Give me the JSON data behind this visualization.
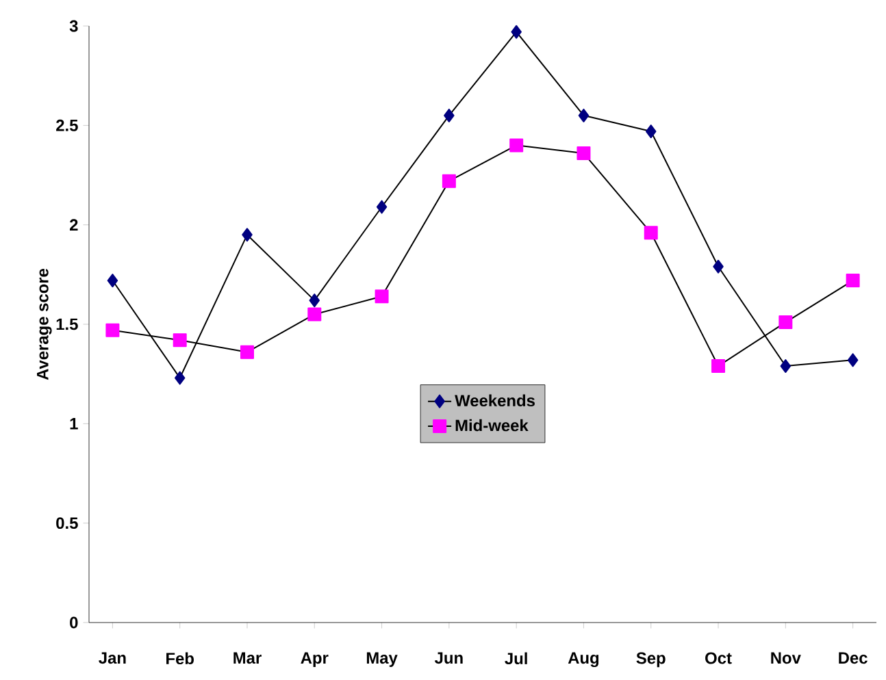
{
  "chart_data": {
    "type": "line",
    "ylabel": "Average score",
    "categories": [
      "Jan",
      "Feb",
      "Mar",
      "Apr",
      "May",
      "Jun",
      "Jul",
      "Aug",
      "Sep",
      "Oct",
      "Nov",
      "Dec"
    ],
    "series": [
      {
        "name": "Weekends",
        "color": "#000080",
        "marker": "diamond",
        "values": [
          1.72,
          1.23,
          1.95,
          1.62,
          2.09,
          2.55,
          2.97,
          2.55,
          2.47,
          1.79,
          1.29,
          1.32
        ]
      },
      {
        "name": "Mid-week",
        "color": "#ff00ff",
        "marker": "square",
        "values": [
          1.47,
          1.42,
          1.36,
          1.55,
          1.64,
          2.22,
          2.4,
          2.36,
          1.96,
          1.29,
          1.51,
          1.72
        ]
      }
    ],
    "ylim": [
      0,
      3
    ],
    "yticks": [
      0,
      0.5,
      1,
      1.5,
      2,
      2.5,
      3
    ],
    "grid": false,
    "legend": "center",
    "line_style": "solid"
  }
}
